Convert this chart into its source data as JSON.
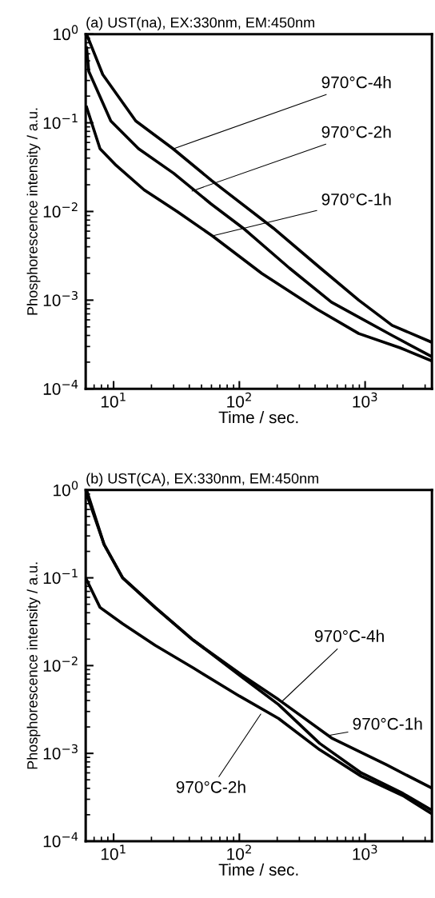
{
  "chart_data": [
    {
      "type": "line",
      "title": "(a) UST(na), EX:330nm, EM:450nm",
      "xlabel": "Time / sec.",
      "ylabel": "Phosphorescence intensity / a.u.",
      "log": "xy",
      "grid": false,
      "marker": "none",
      "line_style": "solid",
      "xlim": [
        6,
        3400
      ],
      "ylim": [
        0.0001,
        1
      ],
      "xticks": [
        {
          "value": 10,
          "label": "10$^{1}$"
        },
        {
          "value": 100,
          "label": "10$^{2}$"
        },
        {
          "value": 1000,
          "label": "10$^{3}$"
        }
      ],
      "yticks": [
        {
          "value": 0.0001,
          "label": "10$^{−4}$"
        },
        {
          "value": 0.001,
          "label": "10$^{−3}$"
        },
        {
          "value": 0.01,
          "label": "10$^{−2}$"
        },
        {
          "value": 0.1,
          "label": "10$^{−1}$"
        },
        {
          "value": 1,
          "label": "10$^{0}$"
        }
      ],
      "series": [
        {
          "color": "#000000",
          "x": [
            6.1,
            8.2,
            15,
            29.7,
            60,
            186,
            441,
            890,
            1640,
            3300
          ],
          "values": [
            1.0,
            0.35,
            0.105,
            0.051,
            0.0224,
            0.0065,
            0.0023,
            0.001,
            0.00052,
            0.00034
          ]
        },
        {
          "color": "#000000",
          "x": [
            6.1,
            6.35,
            9.5,
            15.8,
            30,
            59,
            107,
            250,
            540,
            1640,
            3300
          ],
          "values": [
            0.7,
            0.38,
            0.105,
            0.051,
            0.027,
            0.0123,
            0.0065,
            0.0023,
            0.00095,
            0.0004,
            0.000235
          ]
        },
        {
          "color": "#000000",
          "x": [
            6.1,
            7.8,
            10.5,
            17.5,
            32,
            61,
            151,
            415,
            890,
            1900,
            3300
          ],
          "values": [
            0.15,
            0.051,
            0.033,
            0.0175,
            0.01,
            0.0053,
            0.002,
            0.00079,
            0.00042,
            0.00029,
            0.00021
          ]
        }
      ],
      "annotations": [
        {
          "text": "970°C-4h",
          "x": 30,
          "y": 0.051
        },
        {
          "text": "970°C-2h",
          "x": 42,
          "y": 0.017
        },
        {
          "text": "970°C-1h",
          "x": 61,
          "y": 0.0053
        }
      ]
    },
    {
      "type": "line",
      "title": "(b) UST(CA), EX:330nm, EM:450nm",
      "xlabel": "Time / sec.",
      "ylabel": "Phosphorescence intensity / a.u.",
      "log": "xy",
      "grid": false,
      "marker": "none",
      "line_style": "solid",
      "xlim": [
        6,
        3400
      ],
      "ylim": [
        0.0001,
        1
      ],
      "xticks": [
        {
          "value": 10,
          "label": "10$^{1}$"
        },
        {
          "value": 100,
          "label": "10$^{2}$"
        },
        {
          "value": 1000,
          "label": "10$^{3}$"
        }
      ],
      "yticks": [
        {
          "value": 0.0001,
          "label": "10$^{−4}$"
        },
        {
          "value": 0.001,
          "label": "10$^{−3}$"
        },
        {
          "value": 0.01,
          "label": "10$^{−2}$"
        },
        {
          "value": 0.1,
          "label": "10$^{−1}$"
        },
        {
          "value": 1,
          "label": "10$^{0}$"
        }
      ],
      "series": [
        {
          "color": "#000000",
          "x": [
            6.1,
            8.4,
            11.8,
            21.4,
            43,
            105,
            205,
            435,
            930,
            2000,
            3300
          ],
          "values": [
            1.0,
            0.24,
            0.1,
            0.046,
            0.0195,
            0.0074,
            0.0036,
            0.0013,
            0.0006,
            0.00035,
            0.00023
          ]
        },
        {
          "color": "#000000",
          "x": [
            6.1,
            8.4,
            11.8,
            21.4,
            43,
            105,
            205,
            540,
            1480,
            3300
          ],
          "values": [
            0.9,
            0.24,
            0.1,
            0.046,
            0.0195,
            0.0078,
            0.0041,
            0.0015,
            0.00074,
            0.00041
          ]
        },
        {
          "color": "#000000",
          "x": [
            6.1,
            7.8,
            11.8,
            21.4,
            43,
            100,
            205,
            435,
            930,
            2000,
            3300
          ],
          "values": [
            0.095,
            0.046,
            0.03,
            0.017,
            0.0094,
            0.0045,
            0.0025,
            0.0011,
            0.00055,
            0.00033,
            0.00021
          ]
        }
      ],
      "annotations": [
        {
          "text": "970°C-4h",
          "x": 218,
          "y": 0.0039
        },
        {
          "text": "970°C-1h",
          "x": 510,
          "y": 0.0016
        },
        {
          "text": "970°C-2h",
          "x": 148,
          "y": 0.0028
        }
      ]
    }
  ]
}
